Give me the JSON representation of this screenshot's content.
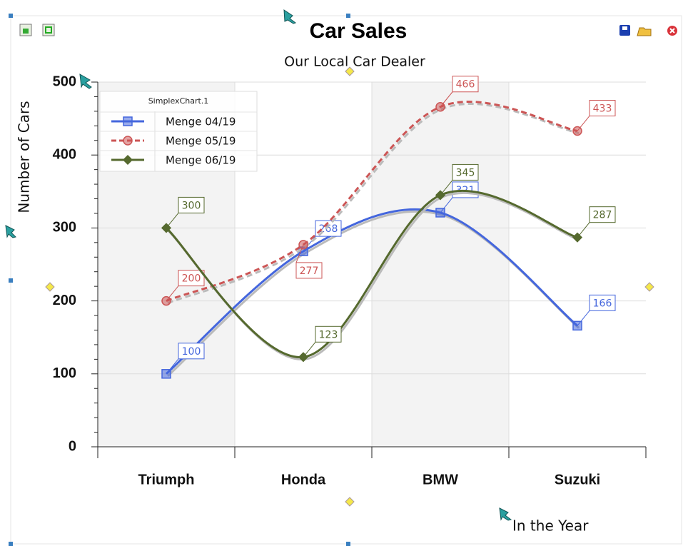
{
  "chart_data": {
    "type": "line",
    "title": "Car Sales",
    "subtitle": "Our Local Car Dealer",
    "y_label": "Number of Cars",
    "x_label": "In the Year",
    "categories": [
      "Triumph",
      "Honda",
      "BMW",
      "Suzuki"
    ],
    "series": [
      {
        "name": "Menge 04/19",
        "color": "#4466dd",
        "marker": "square",
        "line_style": "solid",
        "values": [
          100,
          268,
          321,
          166
        ]
      },
      {
        "name": "Menge 05/19",
        "color": "#cc5555",
        "marker": "circle",
        "line_style": "dashed",
        "values": [
          200,
          277,
          466,
          433
        ]
      },
      {
        "name": "Menge 06/19",
        "color": "#55692e",
        "marker": "diamond",
        "line_style": "solid",
        "values": [
          300,
          123,
          345,
          287
        ]
      }
    ],
    "ylim": [
      0,
      500
    ],
    "yticks": [
      0,
      100,
      200,
      300,
      400,
      500
    ],
    "grid": true,
    "legend": "top-left",
    "legend_title": "SimplexChart.1"
  }
}
